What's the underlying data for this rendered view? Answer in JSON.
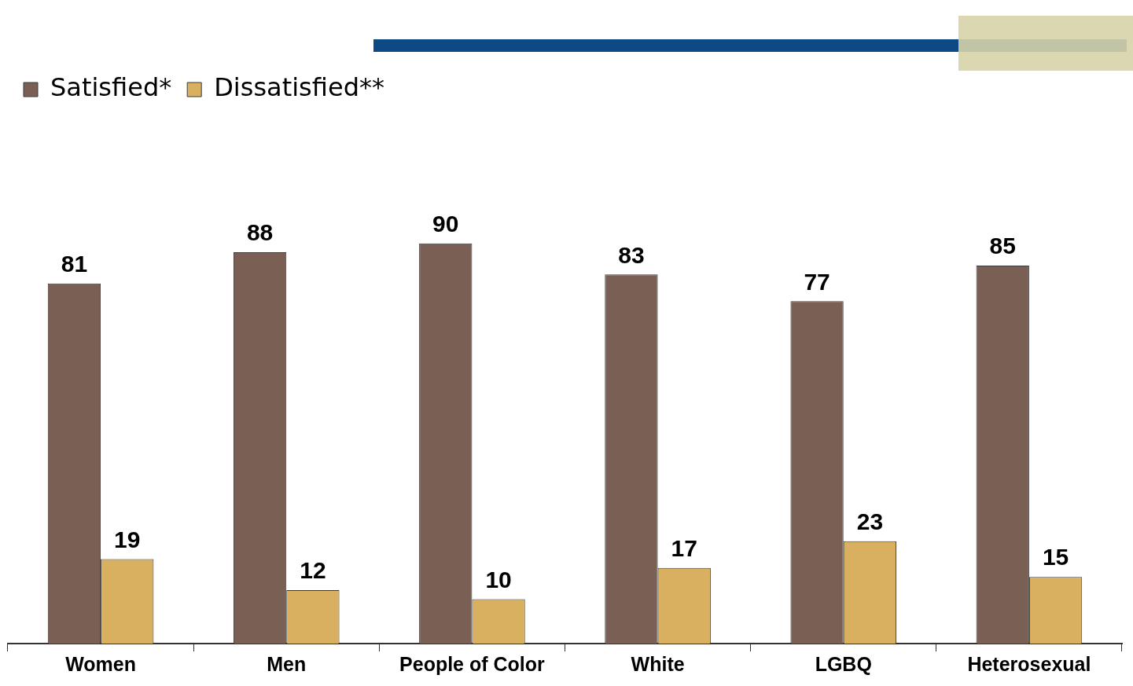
{
  "chart_data": {
    "type": "bar",
    "categories": [
      "Women",
      "Men",
      "People of Color",
      "White",
      "LGBQ",
      "Heterosexual"
    ],
    "series": [
      {
        "name": "Satisfied*",
        "color": "#7a5f55",
        "values": [
          81,
          88,
          90,
          83,
          77,
          85
        ]
      },
      {
        "name": "Dissatisfied**",
        "color": "#d8b060",
        "values": [
          19,
          12,
          10,
          17,
          23,
          15
        ]
      }
    ],
    "data_labels": true,
    "legend": "top left"
  }
}
